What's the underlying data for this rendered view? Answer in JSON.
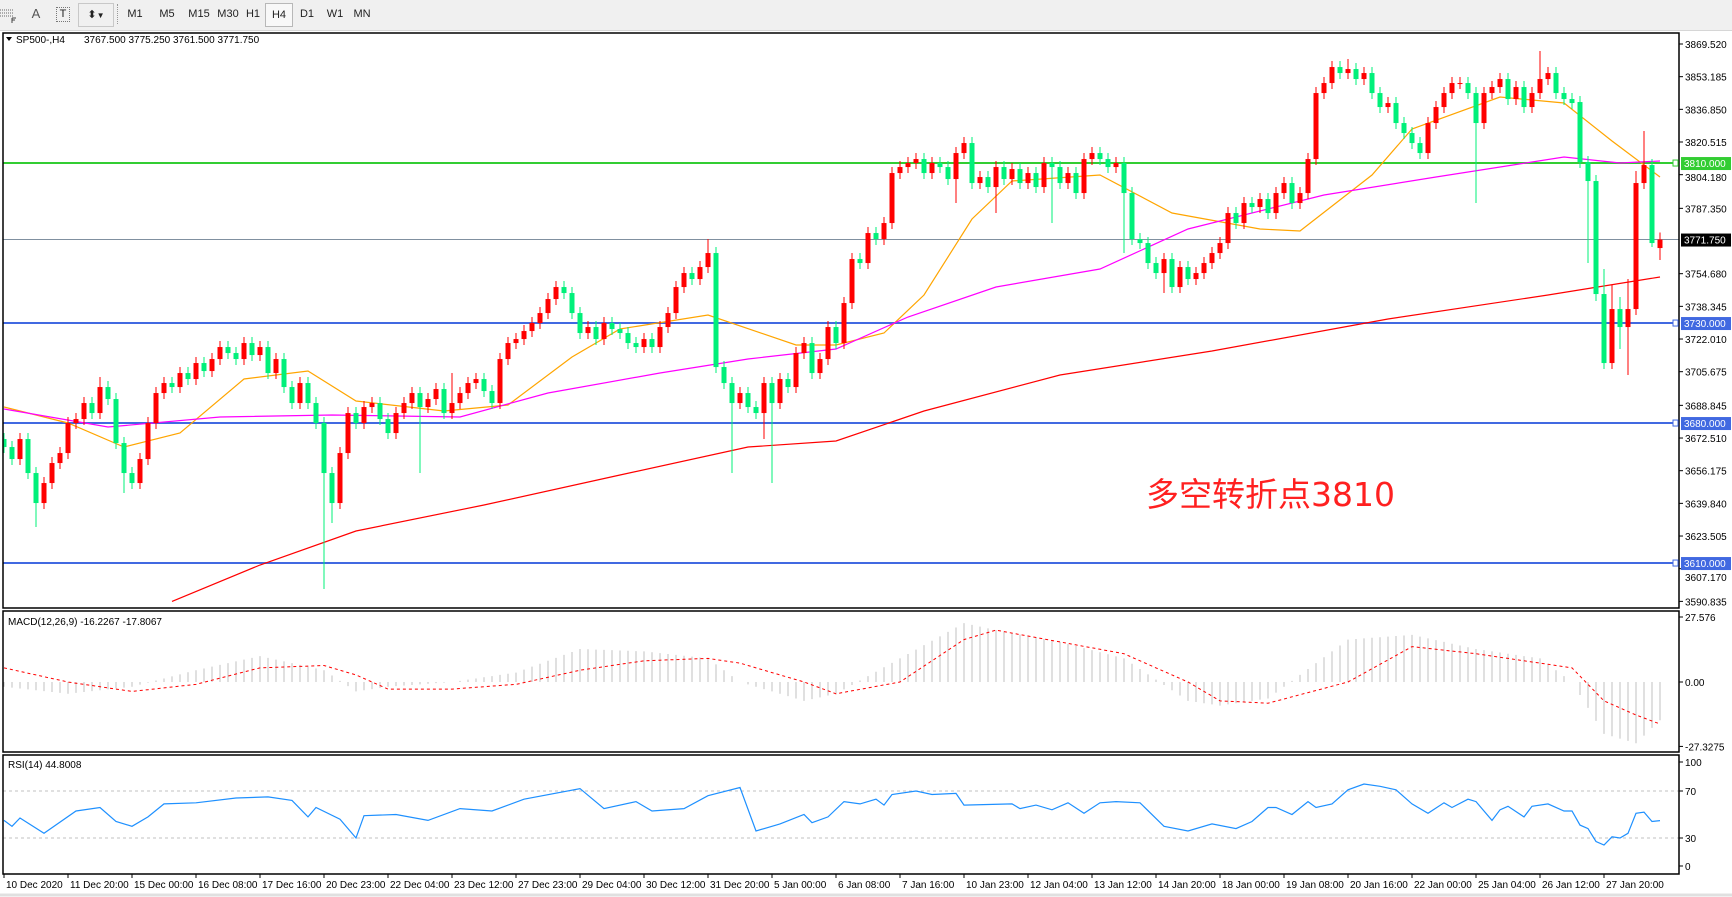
{
  "toolbar": {
    "text_tool": "A",
    "textlabel_tool": "T",
    "timeframes": [
      "M1",
      "M5",
      "M15",
      "M30",
      "H1",
      "H4",
      "D1",
      "W1",
      "MN"
    ],
    "active_timeframe": "H4"
  },
  "header": {
    "symbol": "SP500-,H4",
    "ohlc": "3767.500 3775.250 3761.500 3771.750"
  },
  "annotation": {
    "text": "多空转折点3810",
    "color": "#ff2020"
  },
  "chart_data": [
    {
      "type": "candlestick",
      "symbol": "SP500-",
      "timeframe": "H4",
      "price_ticks": [
        "3869.520",
        "3853.185",
        "3836.850",
        "3820.515",
        "3804.180",
        "3787.350",
        "3754.680",
        "3738.345",
        "3722.010",
        "3705.675",
        "3688.845",
        "3672.510",
        "3656.175",
        "3639.840",
        "3623.505",
        "3607.170",
        "3590.835"
      ],
      "ylim": [
        3590.835,
        3869.52
      ],
      "x_tick_labels": [
        "10 Dec 2020",
        "11 Dec 20:00",
        "15 Dec 00:00",
        "16 Dec 08:00",
        "17 Dec 16:00",
        "20 Dec 23:00",
        "22 Dec 04:00",
        "23 Dec 12:00",
        "27 Dec 23:00",
        "29 Dec 04:00",
        "30 Dec 12:00",
        "31 Dec 20:00",
        "5 Jan 00:00",
        "6 Jan 08:00",
        "7 Jan 16:00",
        "10 Jan 23:00",
        "12 Jan 04:00",
        "13 Jan 12:00",
        "14 Jan 20:00",
        "18 Jan 00:00",
        "19 Jan 08:00",
        "20 Jan 16:00",
        "22 Jan 00:00",
        "25 Jan 04:00",
        "26 Jan 12:00",
        "27 Jan 20:00"
      ],
      "bars_per_tick": 8,
      "close": [
        3668,
        3662,
        3672,
        3655,
        3640,
        3650,
        3660,
        3665,
        3680,
        3682,
        3690,
        3685,
        3698,
        3692,
        3670,
        3655,
        3650,
        3662,
        3680,
        3695,
        3700,
        3698,
        3705,
        3702,
        3710,
        3706,
        3712,
        3718,
        3715,
        3712,
        3720,
        3714,
        3718,
        3705,
        3712,
        3698,
        3690,
        3700,
        3690,
        3680,
        3655,
        3640,
        3665,
        3685,
        3680,
        3688,
        3690,
        3682,
        3675,
        3685,
        3690,
        3695,
        3688,
        3692,
        3697,
        3685,
        3690,
        3695,
        3700,
        3702,
        3696,
        3690,
        3712,
        3720,
        3722,
        3726,
        3730,
        3735,
        3742,
        3748,
        3745,
        3735,
        3725,
        3728,
        3722,
        3730,
        3727,
        3725,
        3720,
        3718,
        3722,
        3718,
        3728,
        3735,
        3748,
        3755,
        3752,
        3758,
        3765,
        3708,
        3700,
        3690,
        3695,
        3688,
        3685,
        3700,
        3690,
        3702,
        3698,
        3715,
        3720,
        3705,
        3712,
        3728,
        3720,
        3740,
        3762,
        3760,
        3775,
        3772,
        3780,
        3805,
        3808,
        3810,
        3812,
        3805,
        3810,
        3808,
        3802,
        3815,
        3820,
        3800,
        3803,
        3798,
        3808,
        3802,
        3807,
        3800,
        3805,
        3798,
        3810,
        3808,
        3800,
        3805,
        3795,
        3812,
        3815,
        3812,
        3808,
        3810,
        3795,
        3772,
        3770,
        3760,
        3755,
        3762,
        3748,
        3758,
        3752,
        3755,
        3760,
        3765,
        3770,
        3785,
        3780,
        3790,
        3788,
        3792,
        3785,
        3795,
        3800,
        3790,
        3795,
        3812,
        3845,
        3850,
        3858,
        3855,
        3857,
        3852,
        3855,
        3845,
        3838,
        3840,
        3830,
        3825,
        3820,
        3815,
        3830,
        3838,
        3845,
        3850,
        3850,
        3845,
        3830,
        3845,
        3848,
        3852,
        3842,
        3848,
        3838,
        3845,
        3852,
        3855,
        3845,
        3842,
        3840,
        3810.5,
        3801,
        3744.5,
        3710,
        3737,
        3728,
        3737,
        3800,
        3809,
        3770,
        3771.75
      ],
      "open_overrides": {
        "0": 3672,
        "197": 3840.5,
        "207": 3767.5
      },
      "high_overrides": {
        "12": 3703,
        "56": 3705,
        "88": 3772,
        "120": 3823,
        "168": 3862,
        "192": 3866,
        "200": 3757,
        "201": 3749,
        "202": 3743,
        "203": 3752,
        "204": 3806,
        "205": 3826,
        "207": 3775.25
      },
      "low_overrides": {
        "4": 3628,
        "15": 3645,
        "40": 3597,
        "41": 3630,
        "52": 3655,
        "91": 3655,
        "95": 3672,
        "96": 3650,
        "119": 3790,
        "124": 3785,
        "131": 3780,
        "140": 3765,
        "145": 3745,
        "184": 3790,
        "198": 3760,
        "199": 3741,
        "200": 3707,
        "202": 3717,
        "203": 3704,
        "206": 3768,
        "207": 3761.5
      },
      "moving_averages": [
        {
          "color": "#ffa500",
          "points": [
            [
              0,
              3688
            ],
            [
              8,
              3680
            ],
            [
              15,
              3668
            ],
            [
              22,
              3675
            ],
            [
              30,
              3702
            ],
            [
              38,
              3706
            ],
            [
              44,
              3691
            ],
            [
              55,
              3686
            ],
            [
              63,
              3689
            ],
            [
              71,
              3713
            ],
            [
              77,
              3727
            ],
            [
              88,
              3734
            ],
            [
              99,
              3719
            ],
            [
              104,
              3719
            ],
            [
              110,
              3725
            ],
            [
              115,
              3744
            ],
            [
              121,
              3782
            ],
            [
              126,
              3801
            ],
            [
              137,
              3804
            ],
            [
              146,
              3785
            ],
            [
              157,
              3777
            ],
            [
              162,
              3776
            ],
            [
              171,
              3804
            ],
            [
              176,
              3827
            ],
            [
              187,
              3843
            ],
            [
              195,
              3840
            ],
            [
              201,
              3821
            ],
            [
              207,
              3803
            ]
          ]
        },
        {
          "color": "#ff00ff",
          "points": [
            [
              0,
              3687
            ],
            [
              13,
              3678
            ],
            [
              27,
              3683
            ],
            [
              41,
              3684
            ],
            [
              57,
              3683
            ],
            [
              68,
              3695
            ],
            [
              82,
              3705
            ],
            [
              93,
              3712
            ],
            [
              104,
              3717
            ],
            [
              113,
              3733
            ],
            [
              124,
              3748
            ],
            [
              137,
              3757
            ],
            [
              148,
              3777
            ],
            [
              165,
              3794
            ],
            [
              179,
              3803
            ],
            [
              195,
              3813
            ],
            [
              202,
              3810
            ],
            [
              207,
              3811
            ]
          ]
        },
        {
          "color": "#ff0000",
          "points": [
            [
              21,
              3590.835
            ],
            [
              32,
              3609
            ],
            [
              44,
              3626
            ],
            [
              60,
              3639
            ],
            [
              77,
              3654
            ],
            [
              93,
              3668
            ],
            [
              104,
              3671
            ],
            [
              115,
              3686
            ],
            [
              132,
              3704
            ],
            [
              151,
              3716
            ],
            [
              173,
              3732
            ],
            [
              193,
              3744
            ],
            [
              207,
              3753
            ]
          ]
        }
      ],
      "horizontal_lines": [
        {
          "price": 3810,
          "label": "3810.000",
          "color": "#32cd32"
        },
        {
          "price": 3730,
          "label": "3730.000",
          "color": "#4169e1"
        },
        {
          "price": 3680,
          "label": "3680.000",
          "color": "#4169e1"
        },
        {
          "price": 3610,
          "label": "3610.000",
          "color": "#4169e1"
        }
      ],
      "current_price": {
        "price": 3771.75,
        "label": "3771.750"
      },
      "colors": {
        "up": "#ff0000",
        "down": "#00f07a"
      }
    },
    {
      "type": "macd",
      "title": "MACD(12,26,9) -16.2267 -17.8067",
      "ticks": [
        "27.576",
        "0.00",
        "-27.3275"
      ],
      "ylim": [
        -27.3275,
        27.576
      ],
      "macd_points": [
        [
          0,
          -2
        ],
        [
          8,
          -5
        ],
        [
          16,
          -2
        ],
        [
          24,
          5
        ],
        [
          32,
          11
        ],
        [
          40,
          5
        ],
        [
          44,
          -4
        ],
        [
          48,
          -2
        ],
        [
          56,
          0
        ],
        [
          64,
          4
        ],
        [
          72,
          14
        ],
        [
          80,
          13
        ],
        [
          88,
          10
        ],
        [
          92,
          0
        ],
        [
          100,
          -8
        ],
        [
          104,
          -5
        ],
        [
          112,
          10
        ],
        [
          120,
          25
        ],
        [
          124,
          22
        ],
        [
          132,
          17
        ],
        [
          140,
          10
        ],
        [
          148,
          -8
        ],
        [
          152,
          -10
        ],
        [
          158,
          -7
        ],
        [
          168,
          18
        ],
        [
          176,
          20
        ],
        [
          184,
          14
        ],
        [
          192,
          10
        ],
        [
          196,
          0
        ],
        [
          200,
          -22
        ],
        [
          204,
          -26
        ],
        [
          207,
          -16.2267
        ]
      ],
      "signal_points": [
        [
          0,
          6
        ],
        [
          8,
          0
        ],
        [
          16,
          -4
        ],
        [
          24,
          -1
        ],
        [
          32,
          6
        ],
        [
          40,
          7
        ],
        [
          44,
          3
        ],
        [
          48,
          -3
        ],
        [
          56,
          -3
        ],
        [
          64,
          -1
        ],
        [
          72,
          5
        ],
        [
          80,
          9
        ],
        [
          88,
          10
        ],
        [
          92,
          8
        ],
        [
          100,
          0
        ],
        [
          104,
          -5
        ],
        [
          112,
          0
        ],
        [
          120,
          18
        ],
        [
          124,
          22
        ],
        [
          132,
          17
        ],
        [
          140,
          12
        ],
        [
          148,
          0
        ],
        [
          152,
          -8
        ],
        [
          158,
          -9
        ],
        [
          168,
          0
        ],
        [
          176,
          15
        ],
        [
          184,
          12
        ],
        [
          192,
          8
        ],
        [
          196,
          6
        ],
        [
          200,
          -8
        ],
        [
          204,
          -14
        ],
        [
          207,
          -17.8067
        ]
      ],
      "histogram_color": "#c0c0c0",
      "signal_color": "#ff0000"
    },
    {
      "type": "line",
      "title": "RSI(14) 44.8008",
      "ticks": [
        "100",
        "70",
        "30",
        "0"
      ],
      "levels": [
        70,
        30
      ],
      "ylim": [
        0,
        100
      ],
      "color": "#1e90ff",
      "points": [
        [
          0,
          45
        ],
        [
          1,
          40
        ],
        [
          2,
          47
        ],
        [
          5,
          34
        ],
        [
          9,
          53
        ],
        [
          12,
          56
        ],
        [
          14,
          44
        ],
        [
          16,
          40
        ],
        [
          18,
          48
        ],
        [
          20,
          59
        ],
        [
          24,
          60
        ],
        [
          29,
          64
        ],
        [
          33,
          65
        ],
        [
          36,
          62
        ],
        [
          38,
          48
        ],
        [
          39,
          56
        ],
        [
          42,
          46
        ],
        [
          44,
          30
        ],
        [
          45,
          49
        ],
        [
          49,
          50
        ],
        [
          53,
          45
        ],
        [
          57,
          55
        ],
        [
          61,
          53
        ],
        [
          65,
          63
        ],
        [
          72,
          72
        ],
        [
          75,
          55
        ],
        [
          79,
          61
        ],
        [
          81,
          53
        ],
        [
          85,
          55
        ],
        [
          88,
          66
        ],
        [
          92,
          73
        ],
        [
          94,
          36
        ],
        [
          97,
          42
        ],
        [
          100,
          50
        ],
        [
          101,
          43
        ],
        [
          103,
          48
        ],
        [
          105,
          61
        ],
        [
          107,
          59
        ],
        [
          109,
          63
        ],
        [
          110,
          58
        ],
        [
          111,
          67
        ],
        [
          114,
          70
        ],
        [
          116,
          67
        ],
        [
          119,
          68
        ],
        [
          120,
          58
        ],
        [
          126,
          59
        ],
        [
          127,
          55
        ],
        [
          129,
          58
        ],
        [
          131,
          54
        ],
        [
          133,
          60
        ],
        [
          135,
          51
        ],
        [
          137,
          60
        ],
        [
          139,
          61
        ],
        [
          142,
          60
        ],
        [
          145,
          40
        ],
        [
          148,
          36
        ],
        [
          151,
          42
        ],
        [
          154,
          38
        ],
        [
          156,
          44
        ],
        [
          158,
          56
        ],
        [
          159,
          56
        ],
        [
          161,
          50
        ],
        [
          163,
          61
        ],
        [
          164,
          56
        ],
        [
          166,
          59
        ],
        [
          168,
          71
        ],
        [
          170,
          76
        ],
        [
          172,
          74
        ],
        [
          174,
          71
        ],
        [
          176,
          59
        ],
        [
          178,
          51
        ],
        [
          180,
          60
        ],
        [
          181,
          56
        ],
        [
          183,
          63
        ],
        [
          184,
          61
        ],
        [
          186,
          45
        ],
        [
          187,
          54
        ],
        [
          188,
          57
        ],
        [
          190,
          48
        ],
        [
          191,
          57
        ],
        [
          193,
          59
        ],
        [
          195,
          53
        ],
        [
          196,
          53
        ],
        [
          197,
          41
        ],
        [
          198,
          38
        ],
        [
          199,
          27
        ],
        [
          200,
          24
        ],
        [
          201,
          31
        ],
        [
          202,
          30
        ],
        [
          203,
          34
        ],
        [
          204,
          51
        ],
        [
          205,
          52
        ],
        [
          206,
          44
        ],
        [
          207,
          44.8
        ]
      ]
    }
  ]
}
